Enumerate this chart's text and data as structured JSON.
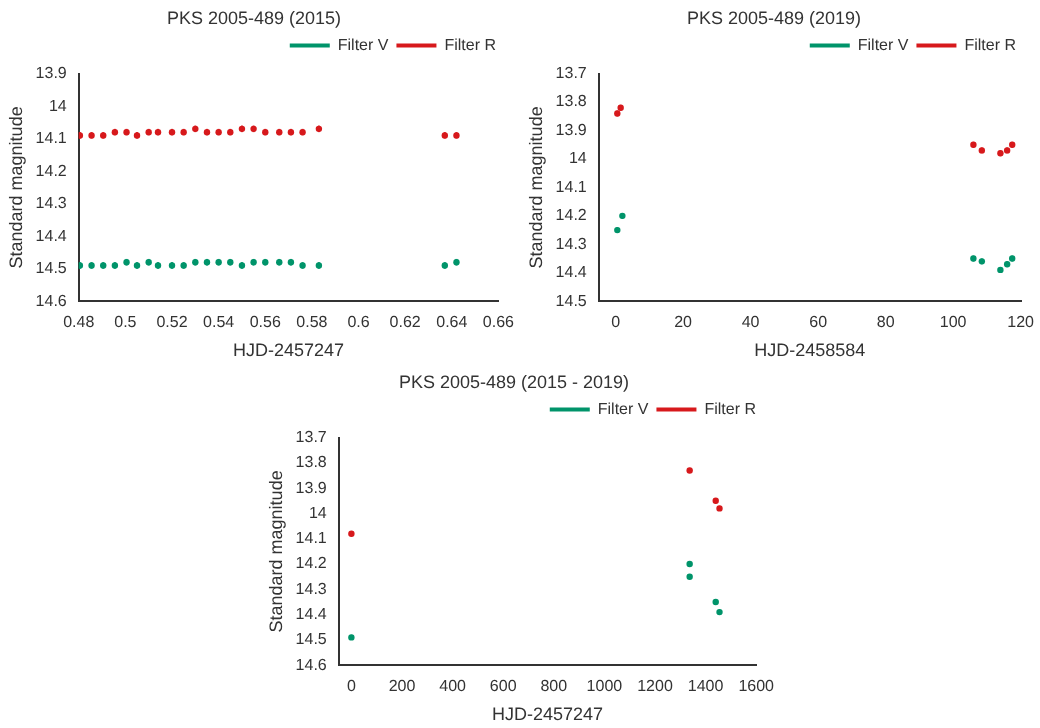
{
  "chart_data": [
    {
      "type": "scatter",
      "title": "PKS 2005-489 (2015)",
      "xlabel": "HJD-2457247",
      "ylabel": "Standard magnitude",
      "xlim": [
        0.48,
        0.66
      ],
      "xticks": [
        0.48,
        0.5,
        0.52,
        0.54,
        0.56,
        0.58,
        0.6,
        0.62,
        0.64,
        0.66
      ],
      "ylim": [
        14.6,
        13.9
      ],
      "yticks": [
        13.9,
        14,
        14.1,
        14.2,
        14.3,
        14.4,
        14.5,
        14.6
      ],
      "legend": "top right",
      "marker": "circle",
      "series": [
        {
          "name": "Filter V",
          "color": "#00946a",
          "x": [
            0.4805,
            0.4855,
            0.4905,
            0.4955,
            0.5005,
            0.505,
            0.51,
            0.514,
            0.52,
            0.525,
            0.53,
            0.535,
            0.54,
            0.545,
            0.55,
            0.555,
            0.56,
            0.566,
            0.571,
            0.576,
            0.583,
            0.637,
            0.642
          ],
          "values": [
            14.49,
            14.49,
            14.49,
            14.49,
            14.48,
            14.49,
            14.48,
            14.49,
            14.49,
            14.49,
            14.48,
            14.48,
            14.48,
            14.48,
            14.49,
            14.48,
            14.48,
            14.48,
            14.48,
            14.49,
            14.49,
            14.49,
            14.48
          ],
          "errors": [
            0.01,
            0.01,
            0.01,
            0.01,
            0.01,
            0.01,
            0.01,
            0.01,
            0.01,
            0.01,
            0.01,
            0.01,
            0.01,
            0.01,
            0.01,
            0.01,
            0.01,
            0.01,
            0.01,
            0.01,
            0.01,
            0.01,
            0.01
          ]
        },
        {
          "name": "Filter R",
          "color": "#d7191c",
          "x": [
            0.4805,
            0.4855,
            0.4905,
            0.4955,
            0.5005,
            0.505,
            0.51,
            0.514,
            0.52,
            0.525,
            0.53,
            0.535,
            0.54,
            0.545,
            0.55,
            0.555,
            0.56,
            0.566,
            0.571,
            0.576,
            0.583,
            0.637,
            0.642
          ],
          "values": [
            14.09,
            14.09,
            14.09,
            14.08,
            14.08,
            14.09,
            14.08,
            14.08,
            14.08,
            14.08,
            14.07,
            14.08,
            14.08,
            14.08,
            14.07,
            14.07,
            14.08,
            14.08,
            14.08,
            14.08,
            14.07,
            14.09,
            14.09
          ],
          "errors": [
            0.01,
            0.01,
            0.01,
            0.01,
            0.01,
            0.01,
            0.01,
            0.01,
            0.01,
            0.01,
            0.01,
            0.01,
            0.01,
            0.01,
            0.01,
            0.01,
            0.01,
            0.01,
            0.01,
            0.01,
            0.01,
            0.01,
            0.01
          ]
        }
      ]
    },
    {
      "type": "scatter",
      "title": "PKS 2005-489 (2019)",
      "xlabel": "HJD-2458584",
      "ylabel": "Standard magnitude",
      "xlim": [
        -5,
        120
      ],
      "xticks": [
        0,
        20,
        40,
        60,
        80,
        100,
        120
      ],
      "ylim": [
        14.5,
        13.7
      ],
      "yticks": [
        13.7,
        13.8,
        13.9,
        14,
        14.1,
        14.2,
        14.3,
        14.4,
        14.5
      ],
      "legend": "top right",
      "marker": "circle",
      "series": [
        {
          "name": "Filter V",
          "color": "#00946a",
          "x": [
            0.5,
            2,
            106,
            108.5,
            114,
            116,
            117.5
          ],
          "values": [
            14.25,
            14.2,
            14.35,
            14.36,
            14.39,
            14.37,
            14.35
          ],
          "errors": [
            0.01,
            0.01,
            0.01,
            0.01,
            0.01,
            0.01,
            0.01
          ]
        },
        {
          "name": "Filter R",
          "color": "#d7191c",
          "x": [
            0.5,
            1.5,
            106,
            108.5,
            114,
            116,
            117.5
          ],
          "values": [
            13.84,
            13.82,
            13.95,
            13.97,
            13.98,
            13.97,
            13.95
          ],
          "errors": [
            0.01,
            0.01,
            0.01,
            0.01,
            0.01,
            0.01,
            0.01
          ]
        }
      ]
    },
    {
      "type": "scatter",
      "title": "PKS 2005-489 (2015 - 2019)",
      "xlabel": "HJD-2457247",
      "ylabel": "Standard magnitude",
      "xlim": [
        -50,
        1600
      ],
      "xticks": [
        0,
        200,
        400,
        600,
        800,
        1000,
        1200,
        1400,
        1600
      ],
      "ylim": [
        14.6,
        13.7
      ],
      "yticks": [
        13.7,
        13.8,
        13.9,
        14,
        14.1,
        14.2,
        14.3,
        14.4,
        14.5,
        14.6
      ],
      "legend": "top right",
      "marker": "circle",
      "series": [
        {
          "name": "Filter V",
          "color": "#00946a",
          "x": [
            0,
            1337,
            1337,
            1440,
            1455
          ],
          "values": [
            14.49,
            14.25,
            14.2,
            14.35,
            14.39
          ],
          "errors": [
            0.01,
            0.01,
            0.01,
            0.01,
            0.01
          ]
        },
        {
          "name": "Filter R",
          "color": "#d7191c",
          "x": [
            0,
            1337,
            1440,
            1455
          ],
          "values": [
            14.08,
            13.83,
            13.95,
            13.98
          ],
          "errors": [
            0.01,
            0.01,
            0.01,
            0.01
          ]
        }
      ]
    }
  ]
}
